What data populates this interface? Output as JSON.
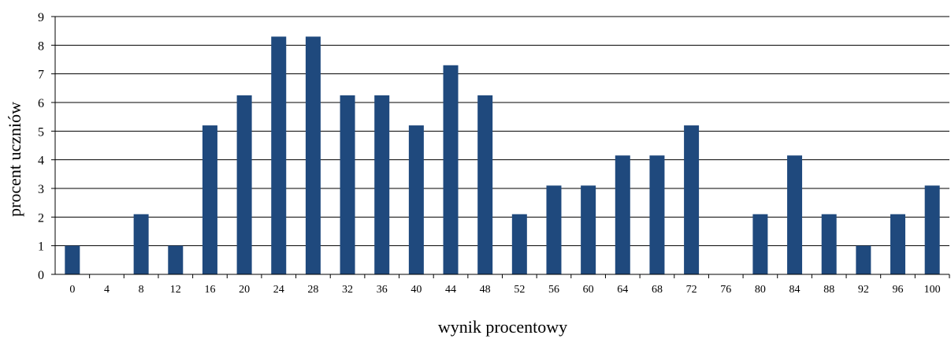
{
  "chart_data": {
    "type": "bar",
    "xlabel": "wynik procentowy",
    "ylabel": "procent uczniów",
    "ylim": [
      0,
      9
    ],
    "yticks": [
      0,
      1,
      2,
      3,
      4,
      5,
      6,
      7,
      8,
      9
    ],
    "grid": true,
    "categories": [
      "0",
      "4",
      "8",
      "12",
      "16",
      "20",
      "24",
      "28",
      "32",
      "36",
      "40",
      "44",
      "48",
      "52",
      "56",
      "60",
      "64",
      "68",
      "72",
      "76",
      "80",
      "84",
      "88",
      "92",
      "96",
      "100"
    ],
    "values": [
      1.0,
      0,
      2.1,
      1.0,
      5.2,
      6.25,
      8.3,
      8.3,
      6.25,
      6.25,
      5.2,
      7.3,
      6.25,
      2.1,
      3.1,
      3.1,
      4.15,
      4.15,
      5.2,
      0,
      2.1,
      4.15,
      2.1,
      1.0,
      2.1,
      3.1
    ],
    "bar_color": "#1f497d"
  }
}
